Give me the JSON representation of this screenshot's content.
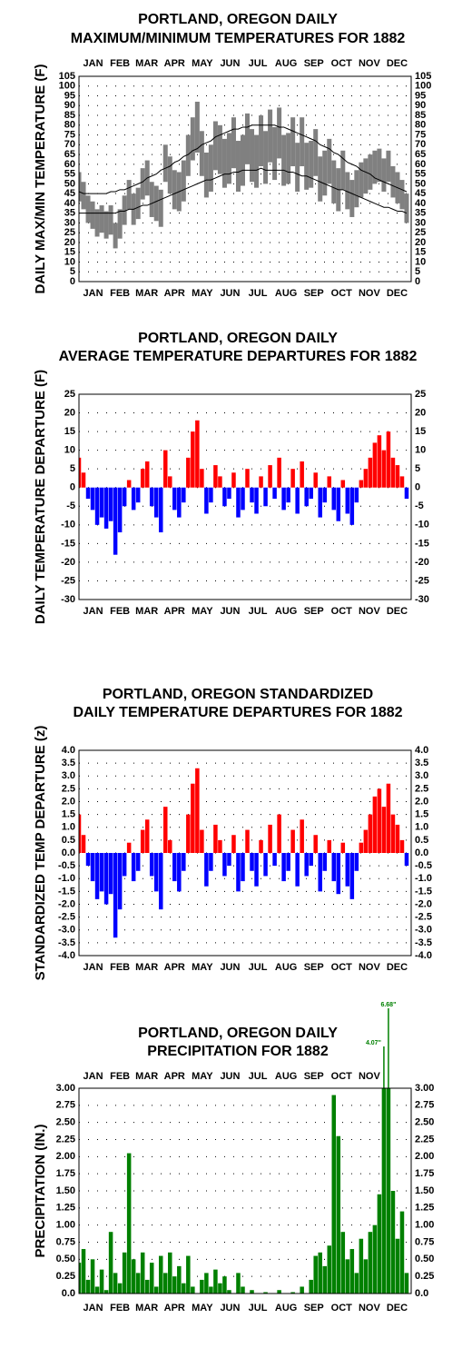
{
  "chart_data": [
    {
      "type": "range",
      "title": [
        "PORTLAND, OREGON DAILY",
        "MAXIMUM/MINIMUM TEMPERATURES FOR 1882"
      ],
      "y_label": "DAILY MAX/MIN TEMPERATURE (F)",
      "categories": [
        "JAN",
        "FEB",
        "MAR",
        "APR",
        "MAY",
        "JUN",
        "JUL",
        "AUG",
        "SEP",
        "OCT",
        "NOV",
        "DEC"
      ],
      "x": [
        1,
        6,
        11,
        16,
        21,
        26,
        31,
        36,
        41,
        46,
        51,
        56,
        61,
        66,
        71,
        76,
        81,
        86,
        91,
        96,
        101,
        106,
        111,
        116,
        121,
        126,
        131,
        136,
        141,
        146,
        151,
        156,
        161,
        166,
        171,
        176,
        181,
        186,
        191,
        196,
        201,
        206,
        211,
        216,
        221,
        226,
        231,
        236,
        241,
        246,
        251,
        256,
        261,
        266,
        271,
        276,
        281,
        286,
        291,
        296,
        301,
        306,
        311,
        316,
        321,
        326,
        331,
        336,
        341,
        346,
        351,
        356,
        361
      ],
      "xlim": [
        1,
        366
      ],
      "ylim": [
        0,
        105
      ],
      "yticks": [
        0,
        5,
        10,
        15,
        20,
        25,
        30,
        35,
        40,
        45,
        50,
        55,
        60,
        65,
        70,
        75,
        80,
        85,
        90,
        95,
        100,
        105
      ],
      "grid": true,
      "range": {
        "color": "#808080",
        "low": [
          41,
          37,
          30,
          27,
          23,
          25,
          22,
          24,
          17,
          22,
          29,
          37,
          29,
          32,
          42,
          44,
          33,
          31,
          28,
          51,
          45,
          37,
          36,
          41,
          54,
          62,
          66,
          54,
          43,
          46,
          57,
          55,
          48,
          50,
          58,
          46,
          49,
          60,
          51,
          48,
          59,
          50,
          61,
          52,
          63,
          49,
          50,
          59,
          46,
          59,
          47,
          48,
          54,
          41,
          44,
          50,
          40,
          36,
          47,
          37,
          33,
          38,
          43,
          45,
          47,
          50,
          51,
          46,
          51,
          43,
          40,
          37,
          30
        ],
        "high": [
          56,
          51,
          44,
          41,
          37,
          39,
          36,
          39,
          30,
          37,
          44,
          52,
          45,
          48,
          58,
          62,
          51,
          49,
          47,
          70,
          64,
          57,
          56,
          62,
          75,
          84,
          92,
          77,
          66,
          70,
          82,
          80,
          73,
          76,
          84,
          72,
          75,
          86,
          78,
          75,
          85,
          77,
          88,
          79,
          89,
          75,
          76,
          84,
          71,
          84,
          71,
          72,
          78,
          64,
          67,
          73,
          62,
          58,
          67,
          56,
          52,
          57,
          61,
          63,
          65,
          67,
          68,
          63,
          67,
          59,
          56,
          52,
          45
        ]
      },
      "lines": [
        {
          "color": "#000000",
          "values": [
            46,
            45,
            45,
            45,
            45,
            45,
            45,
            46,
            46,
            47,
            47,
            48,
            49,
            50,
            51,
            53,
            54,
            55,
            57,
            58,
            59,
            61,
            62,
            64,
            65,
            67,
            68,
            70,
            71,
            72,
            74,
            75,
            76,
            77,
            78,
            78,
            79,
            79,
            80,
            80,
            80,
            80,
            80,
            80,
            79,
            79,
            78,
            77,
            76,
            75,
            74,
            73,
            72,
            70,
            69,
            68,
            66,
            65,
            63,
            61,
            60,
            59,
            57,
            56,
            55,
            53,
            52,
            51,
            50,
            49,
            48,
            47,
            46
          ]
        },
        {
          "color": "#000000",
          "values": [
            35,
            35,
            35,
            35,
            35,
            35,
            35,
            35,
            35,
            36,
            36,
            37,
            37,
            38,
            39,
            39,
            40,
            41,
            42,
            43,
            44,
            45,
            46,
            47,
            48,
            49,
            50,
            51,
            52,
            52,
            53,
            54,
            55,
            55,
            56,
            56,
            57,
            57,
            57,
            57,
            58,
            57,
            57,
            57,
            57,
            57,
            56,
            56,
            55,
            54,
            54,
            53,
            52,
            51,
            50,
            49,
            48,
            47,
            47,
            46,
            45,
            44,
            43,
            42,
            41,
            40,
            39,
            38,
            38,
            37,
            36,
            36,
            35
          ]
        }
      ]
    },
    {
      "type": "bar",
      "title": [
        "PORTLAND, OREGON DAILY",
        "AVERAGE TEMPERATURE DEPARTURES FOR 1882"
      ],
      "y_label": "DAILY TEMPERATURE DEPARTURE (F)",
      "categories": [
        "JAN",
        "FEB",
        "MAR",
        "APR",
        "MAY",
        "JUN",
        "JUL",
        "AUG",
        "SEP",
        "OCT",
        "NOV",
        "DEC"
      ],
      "x": [
        1,
        6,
        11,
        16,
        21,
        26,
        31,
        36,
        41,
        46,
        51,
        56,
        61,
        66,
        71,
        76,
        81,
        86,
        91,
        96,
        101,
        106,
        111,
        116,
        121,
        126,
        131,
        136,
        141,
        146,
        151,
        156,
        161,
        166,
        171,
        176,
        181,
        186,
        191,
        196,
        201,
        206,
        211,
        216,
        221,
        226,
        231,
        236,
        241,
        246,
        251,
        256,
        261,
        266,
        271,
        276,
        281,
        286,
        291,
        296,
        301,
        306,
        311,
        316,
        321,
        326,
        331,
        336,
        341,
        346,
        351,
        356,
        361
      ],
      "xlim": [
        1,
        366
      ],
      "ylim": [
        -30,
        25
      ],
      "yticks": [
        -30,
        -25,
        -20,
        -15,
        -10,
        -5,
        0,
        5,
        10,
        15,
        20,
        25
      ],
      "grid": true,
      "colors": {
        "positive": "#ff0000",
        "negative": "#0000ff"
      },
      "values": [
        8,
        4,
        -3,
        -6,
        -10,
        -8,
        -11,
        -9,
        -18,
        -12,
        -5,
        2,
        -6,
        -4,
        5,
        7,
        -5,
        -8,
        -12,
        10,
        3,
        -6,
        -8,
        -4,
        8,
        15,
        18,
        5,
        -7,
        -4,
        6,
        3,
        -5,
        -3,
        4,
        -8,
        -6,
        5,
        -4,
        -7,
        3,
        -5,
        6,
        -3,
        8,
        -6,
        -4,
        5,
        -7,
        7,
        -5,
        -3,
        4,
        -8,
        -4,
        3,
        -6,
        -9,
        2,
        -7,
        -10,
        -4,
        2,
        5,
        8,
        12,
        14,
        10,
        15,
        8,
        6,
        3,
        -3
      ]
    },
    {
      "type": "bar",
      "title": [
        "PORTLAND, OREGON STANDARDIZED",
        "DAILY TEMPERATURE DEPARTURES FOR 1882"
      ],
      "y_label": "STANDARDIZED TEMP DEPARTURE (z)",
      "categories": [
        "JAN",
        "FEB",
        "MAR",
        "APR",
        "MAY",
        "JUN",
        "JUL",
        "AUG",
        "SEP",
        "OCT",
        "NOV",
        "DEC"
      ],
      "x": [
        1,
        6,
        11,
        16,
        21,
        26,
        31,
        36,
        41,
        46,
        51,
        56,
        61,
        66,
        71,
        76,
        81,
        86,
        91,
        96,
        101,
        106,
        111,
        116,
        121,
        126,
        131,
        136,
        141,
        146,
        151,
        156,
        161,
        166,
        171,
        176,
        181,
        186,
        191,
        196,
        201,
        206,
        211,
        216,
        221,
        226,
        231,
        236,
        241,
        246,
        251,
        256,
        261,
        266,
        271,
        276,
        281,
        286,
        291,
        296,
        301,
        306,
        311,
        316,
        321,
        326,
        331,
        336,
        341,
        346,
        351,
        356,
        361
      ],
      "xlim": [
        1,
        366
      ],
      "ylim": [
        -4,
        4
      ],
      "yticks": [
        {
          "value": -4,
          "label": "-4.0"
        },
        -3.5,
        {
          "value": -3,
          "label": "-3.0"
        },
        -2.5,
        {
          "value": -2,
          "label": "-2.0"
        },
        -1.5,
        {
          "value": -1,
          "label": "-1.0"
        },
        -0.5,
        {
          "value": 0,
          "label": "0.0"
        },
        0.5,
        {
          "value": 1,
          "label": "1.0"
        },
        1.5,
        {
          "value": 2,
          "label": "2.0"
        },
        2.5,
        {
          "value": 3,
          "label": "3.0"
        },
        3.5,
        {
          "value": 4,
          "label": "4.0"
        }
      ],
      "grid": true,
      "colors": {
        "positive": "#ff0000",
        "negative": "#0000ff"
      },
      "values": [
        1.5,
        0.7,
        -0.5,
        -1.1,
        -1.8,
        -1.5,
        -2.0,
        -1.6,
        -3.3,
        -2.2,
        -0.9,
        0.4,
        -1.1,
        -0.7,
        0.9,
        1.3,
        -0.9,
        -1.5,
        -2.2,
        1.8,
        0.5,
        -1.1,
        -1.5,
        -0.7,
        1.5,
        2.7,
        3.3,
        0.9,
        -1.3,
        -0.7,
        1.1,
        0.5,
        -0.9,
        -0.5,
        0.7,
        -1.5,
        -1.1,
        0.9,
        -0.7,
        -1.3,
        0.5,
        -0.9,
        1.1,
        -0.5,
        1.5,
        -1.1,
        -0.7,
        0.9,
        -1.3,
        1.3,
        -0.9,
        -0.5,
        0.7,
        -1.5,
        -0.7,
        0.5,
        -1.1,
        -1.6,
        0.4,
        -1.3,
        -1.8,
        -0.7,
        0.4,
        0.9,
        1.5,
        2.2,
        2.5,
        1.8,
        2.7,
        1.5,
        1.1,
        0.5,
        -0.5
      ]
    },
    {
      "type": "bar",
      "title": [
        "PORTLAND, OREGON DAILY",
        "PRECIPITATION FOR 1882"
      ],
      "y_label": "PRECIPITATION (IN.)",
      "categories": [
        "JAN",
        "FEB",
        "MAR",
        "APR",
        "MAY",
        "JUN",
        "JUL",
        "AUG",
        "SEP",
        "OCT",
        "NOV",
        "DEC"
      ],
      "x": [
        1,
        6,
        11,
        16,
        21,
        26,
        31,
        36,
        41,
        46,
        51,
        56,
        61,
        66,
        71,
        76,
        81,
        86,
        91,
        96,
        101,
        106,
        111,
        116,
        121,
        126,
        131,
        136,
        141,
        146,
        151,
        156,
        161,
        166,
        171,
        176,
        181,
        186,
        191,
        196,
        201,
        206,
        211,
        216,
        221,
        226,
        231,
        236,
        241,
        246,
        251,
        256,
        261,
        266,
        271,
        276,
        281,
        286,
        291,
        296,
        301,
        306,
        311,
        316,
        321,
        326,
        331,
        336,
        341,
        346,
        351,
        356,
        361
      ],
      "xlim": [
        1,
        366
      ],
      "ylim": [
        0,
        3
      ],
      "yticks": [
        {
          "value": 0,
          "label": "0.0"
        },
        0.25,
        {
          "value": 0.5,
          "label": "0.50"
        },
        0.75,
        {
          "value": 1,
          "label": "1.00"
        },
        1.25,
        {
          "value": 1.5,
          "label": "1.50"
        },
        1.75,
        {
          "value": 2,
          "label": "2.00"
        },
        2.25,
        {
          "value": 2.5,
          "label": "2.50"
        },
        2.75,
        {
          "value": 3,
          "label": "3.00"
        }
      ],
      "grid": true,
      "color": "#008000",
      "values": [
        0.45,
        0.65,
        0.2,
        0.5,
        0.1,
        0.35,
        0.05,
        0.9,
        0.3,
        0.15,
        0.6,
        2.05,
        0.5,
        0.3,
        0.6,
        0.2,
        0.45,
        0.1,
        0.55,
        0.3,
        0.6,
        0.25,
        0.4,
        0.15,
        0.55,
        0.1,
        0,
        0.2,
        0.3,
        0.1,
        0.35,
        0.15,
        0.25,
        0.05,
        0,
        0.3,
        0.1,
        0,
        0.05,
        0,
        0,
        0.02,
        0,
        0,
        0.05,
        0,
        0,
        0.02,
        0,
        0.1,
        0,
        0.2,
        0.55,
        0.6,
        0.4,
        0.7,
        2.9,
        2.3,
        0.9,
        0.5,
        0.65,
        0.3,
        0.8,
        0.5,
        0.9,
        1.0,
        1.45,
        4.07,
        6.68,
        1.5,
        0.8,
        1.2,
        0.3
      ],
      "value_labels": [
        null,
        null,
        null,
        null,
        null,
        null,
        null,
        null,
        null,
        null,
        null,
        null,
        null,
        null,
        null,
        null,
        null,
        null,
        null,
        null,
        null,
        null,
        null,
        null,
        null,
        null,
        null,
        null,
        null,
        null,
        null,
        null,
        null,
        null,
        null,
        null,
        null,
        null,
        null,
        null,
        null,
        null,
        null,
        null,
        null,
        null,
        null,
        null,
        null,
        null,
        null,
        null,
        null,
        null,
        null,
        null,
        null,
        null,
        null,
        null,
        null,
        null,
        null,
        null,
        null,
        null,
        null,
        "4.07\"",
        "6.68\"",
        null,
        null,
        null,
        null
      ]
    }
  ]
}
